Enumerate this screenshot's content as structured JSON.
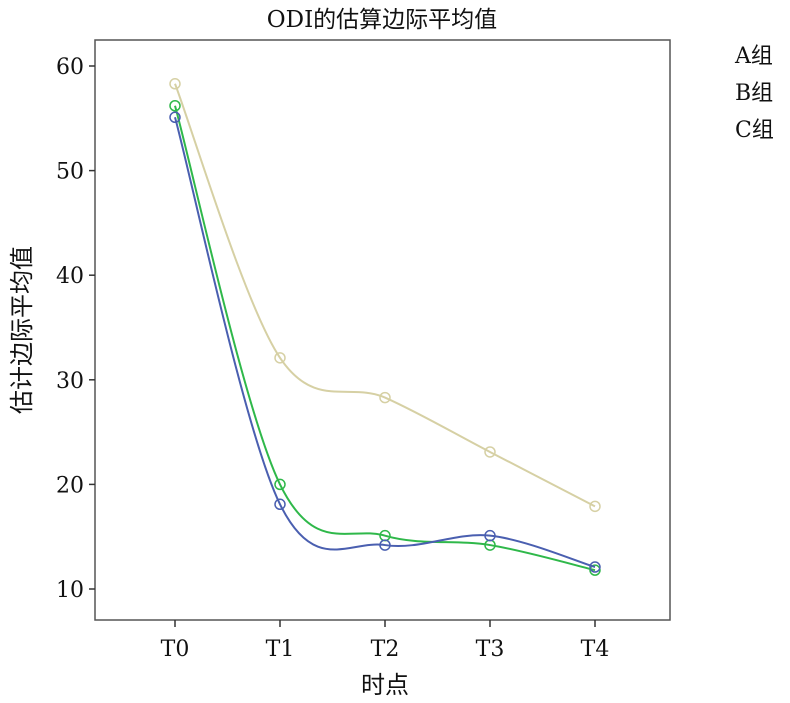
{
  "chart_data": {
    "type": "line",
    "title": "ODI的估算边际平均值",
    "xlabel": "时点",
    "ylabel": "估计边际平均值",
    "categories": [
      "T0",
      "T1",
      "T2",
      "T3",
      "T4"
    ],
    "y_ticks": [
      10,
      20,
      30,
      40,
      50,
      60
    ],
    "ylim": [
      7.5,
      62.5
    ],
    "grid": false,
    "legend_position": "right-top",
    "series": [
      {
        "name": "A组",
        "color": "#4a5fb0",
        "values": [
          55.1,
          18.1,
          14.2,
          15.1,
          12.1
        ]
      },
      {
        "name": "B组",
        "color": "#2fb84a",
        "values": [
          56.2,
          20.0,
          15.1,
          14.2,
          11.8
        ]
      },
      {
        "name": "C组",
        "color": "#d6d0a4",
        "values": [
          58.3,
          32.1,
          28.3,
          23.1,
          17.9
        ]
      }
    ]
  }
}
